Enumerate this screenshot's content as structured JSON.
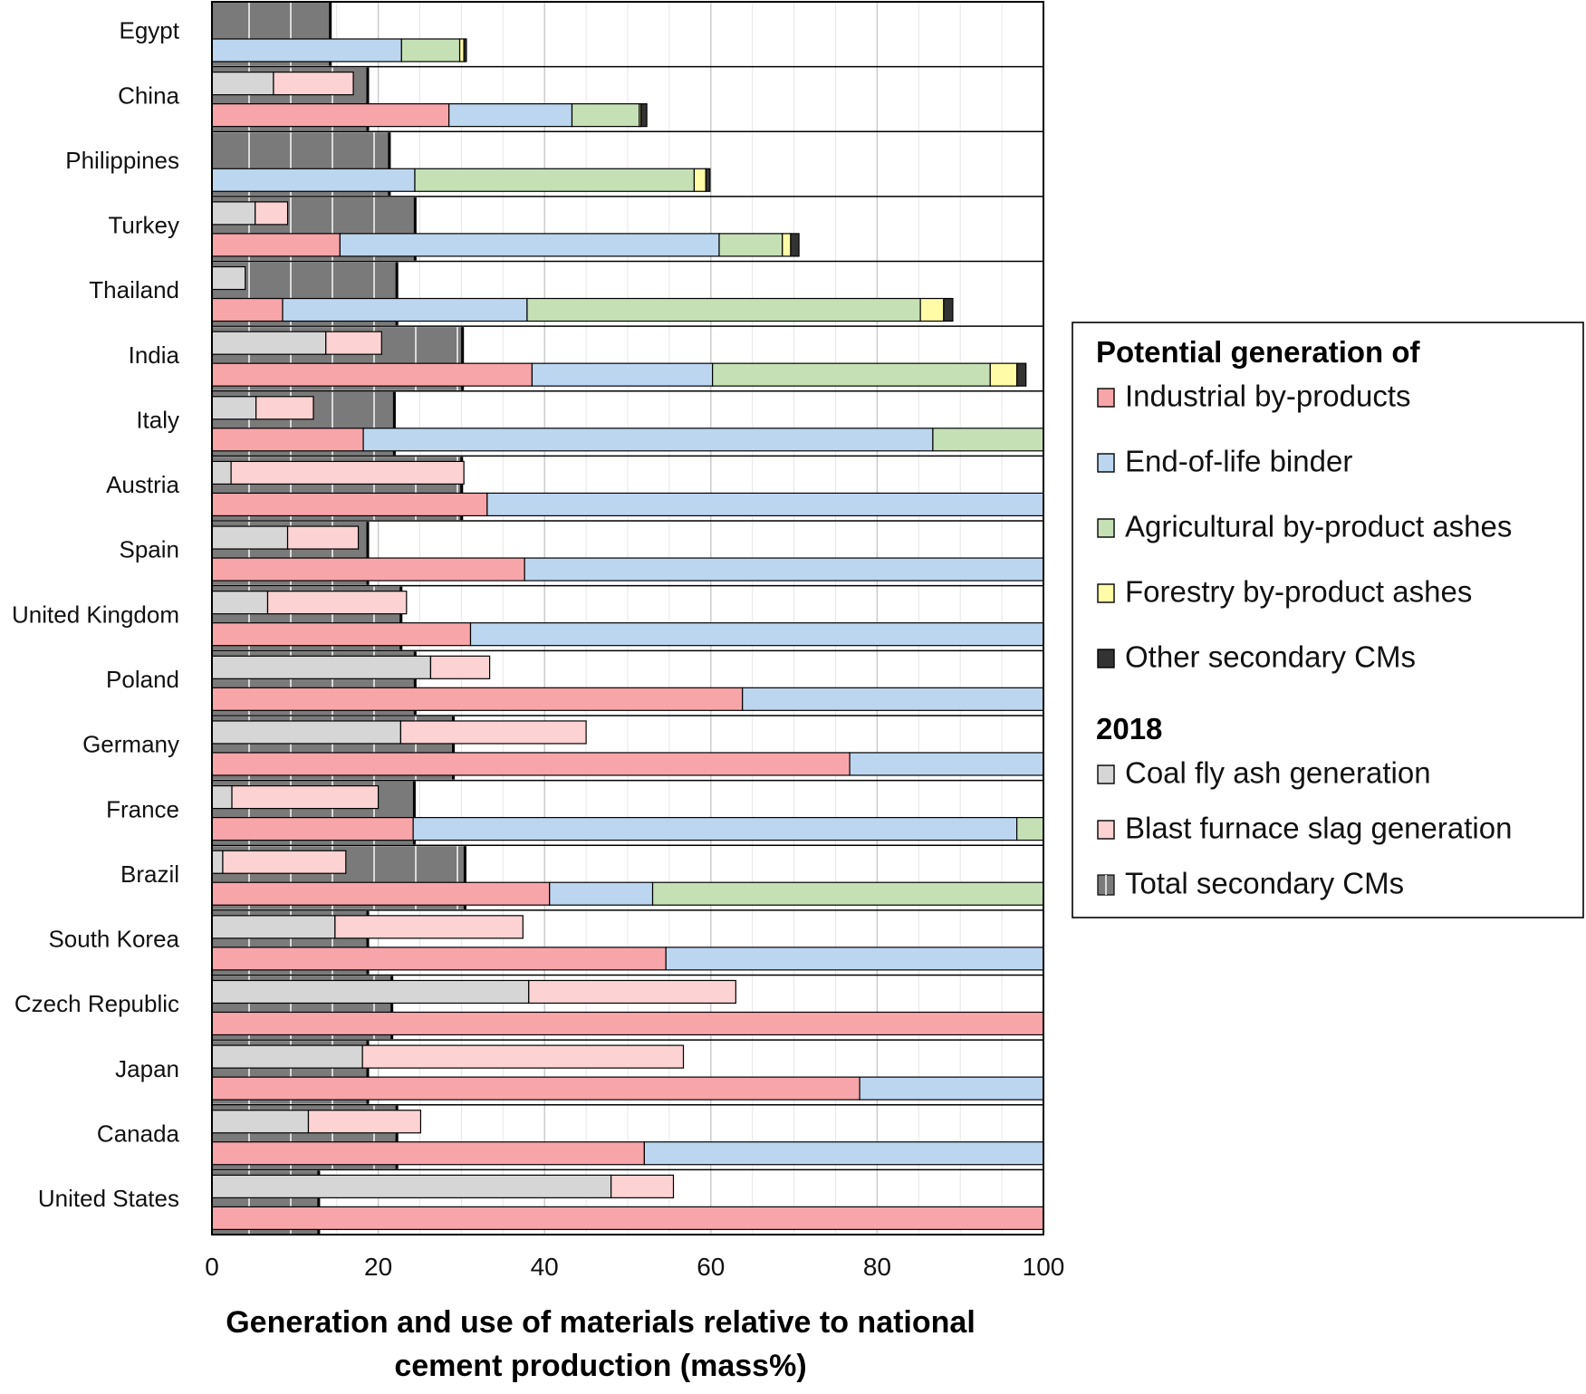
{
  "chart_data": {
    "type": "bar",
    "orientation": "horizontal",
    "xlabel_lines": [
      "Generation and use of materials relative to national",
      "cement production (mass%)"
    ],
    "xlim": [
      0,
      100
    ],
    "xticks": [
      "0",
      "20",
      "40",
      "60",
      "80",
      "100"
    ],
    "grid": true,
    "legend_position": "right",
    "legend": {
      "group_potential": "Potential generation of",
      "group_2018": "2018",
      "items": [
        {
          "key": "industrial",
          "group": "potential",
          "label": "Industrial by-products",
          "color": "#f8a5a9"
        },
        {
          "key": "eol",
          "group": "potential",
          "label": "End-of-life binder",
          "color": "#bcd6ef"
        },
        {
          "key": "agri",
          "group": "potential",
          "label": "Agricultural by-product ashes",
          "color": "#c6e0b6"
        },
        {
          "key": "forestry",
          "group": "potential",
          "label": "Forestry by-product ashes",
          "color": "#fffba6"
        },
        {
          "key": "other",
          "group": "potential",
          "label": "Other secondary CMs",
          "color": "#333333"
        },
        {
          "key": "coal",
          "group": "2018",
          "label": "Coal fly ash generation",
          "color": "#d6d6d6"
        },
        {
          "key": "slag",
          "group": "2018",
          "label": "Blast furnace slag generation",
          "color": "#fcd2d2"
        },
        {
          "key": "total",
          "group": "2018",
          "label": "Total secondary CMs",
          "color": "#7a7a7a"
        }
      ]
    },
    "categories": [
      "Egypt",
      "China",
      "Philippines",
      "Turkey",
      "Thailand",
      "India",
      "Italy",
      "Austria",
      "Spain",
      "United Kingdom",
      "Poland",
      "Germany",
      "France",
      "Brazil",
      "South Korea",
      "Czech Republic",
      "Japan",
      "Canada",
      "United States"
    ],
    "total_secondary_cms": [
      14.4,
      18.9,
      21.5,
      24.6,
      22.4,
      30.3,
      22.1,
      30.2,
      18.9,
      22.9,
      24.6,
      29.2,
      24.5,
      30.6,
      18.9,
      21.8,
      18.9,
      22.4,
      13.0
    ],
    "generation_2018": {
      "coal_fly_ash": [
        0,
        7.4,
        0,
        5.2,
        4.0,
        13.7,
        5.3,
        2.3,
        9.1,
        6.7,
        26.3,
        22.7,
        2.4,
        1.3,
        14.8,
        38.1,
        18.1,
        11.6,
        48.0
      ],
      "blast_furnace_slag": [
        0,
        9.6,
        0,
        3.9,
        0,
        6.7,
        6.9,
        28.0,
        8.5,
        16.7,
        7.1,
        22.3,
        17.6,
        14.8,
        22.6,
        24.9,
        38.6,
        13.5,
        7.5
      ]
    },
    "potential_generation": {
      "industrial_by_products": [
        0,
        28.5,
        0,
        15.4,
        8.5,
        38.5,
        18.2,
        33.1,
        37.6,
        31.1,
        63.8,
        76.7,
        24.2,
        40.6,
        54.6,
        100,
        77.9,
        52.0,
        100
      ],
      "end_of_life_binder": [
        22.8,
        14.8,
        24.4,
        45.6,
        29.4,
        21.7,
        68.5,
        66.9,
        62.4,
        68.9,
        36.2,
        23.3,
        72.6,
        12.4,
        45.4,
        0,
        22.1,
        48.0,
        0
      ],
      "agricultural_by_product_ashes": [
        7.0,
        8.1,
        33.6,
        7.6,
        47.3,
        33.4,
        13.3,
        0,
        0,
        0,
        0,
        0,
        3.2,
        47.0,
        0,
        0,
        0,
        0,
        0
      ],
      "forestry_by_product_ashes": [
        0.5,
        0.2,
        1.4,
        1.0,
        2.8,
        3.2,
        0,
        0,
        0,
        0,
        0,
        0,
        0,
        0,
        0,
        0,
        0,
        0,
        0
      ],
      "other_secondary_cms": [
        0.3,
        0.7,
        0.5,
        1.0,
        1.1,
        1.1,
        0,
        0,
        0,
        0,
        0,
        0,
        0,
        0,
        0,
        0,
        0,
        0,
        0
      ]
    }
  }
}
